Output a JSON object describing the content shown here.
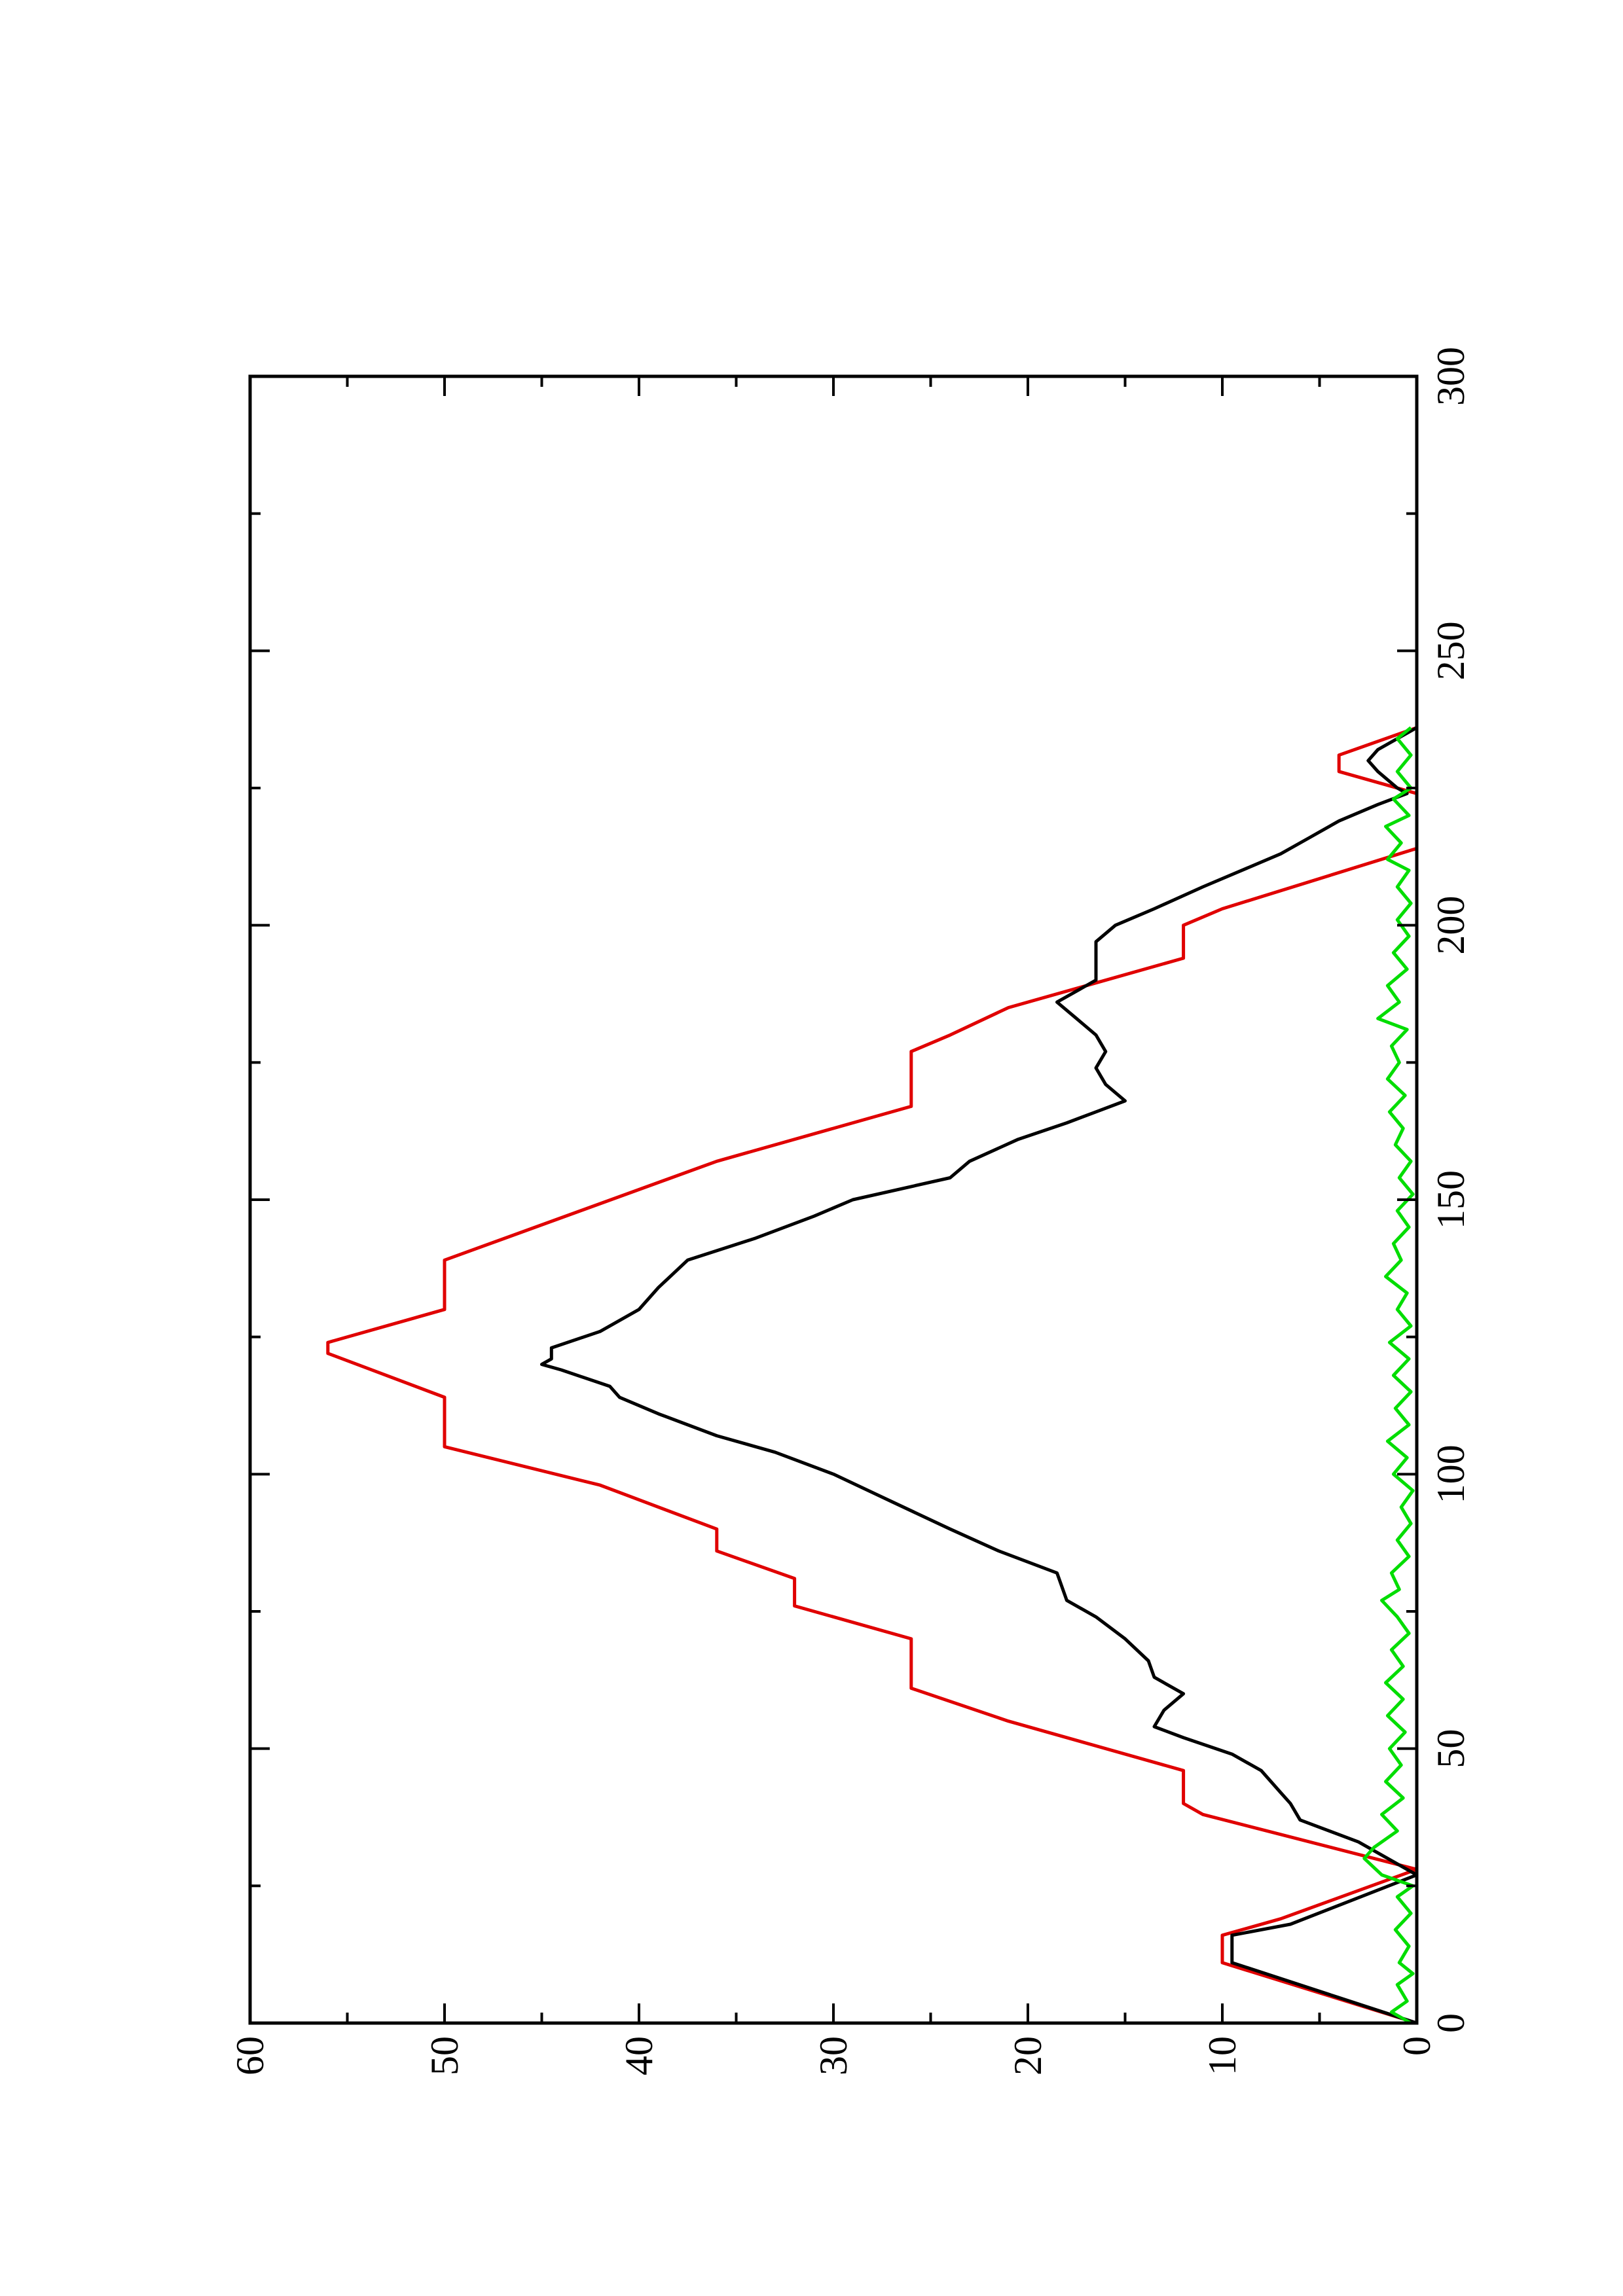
{
  "chart_data": {
    "type": "line",
    "title": "",
    "xlabel": "",
    "ylabel": "",
    "orientation": "rotated 90 degrees counter-clockwise",
    "xlim": [
      0,
      300
    ],
    "ylim": [
      0,
      60
    ],
    "x_ticks": [
      "0",
      "50",
      "100",
      "150",
      "200",
      "250",
      "300"
    ],
    "y_ticks": [
      "0",
      "10",
      "20",
      "30",
      "40",
      "50",
      "60"
    ],
    "grid": false,
    "legend": "none",
    "colors": {
      "red": "#e00000",
      "black": "#000000",
      "green": "#00dd00"
    },
    "series": [
      {
        "color": "#e00000",
        "points": [
          [
            0,
            0
          ],
          [
            11,
            10
          ],
          [
            16,
            10
          ],
          [
            19,
            7
          ],
          [
            28,
            0
          ],
          [
            38,
            11
          ],
          [
            40,
            12
          ],
          [
            46,
            12
          ],
          [
            55,
            21
          ],
          [
            61,
            26
          ],
          [
            70,
            26
          ],
          [
            76,
            32
          ],
          [
            81,
            32
          ],
          [
            86,
            36
          ],
          [
            90,
            36
          ],
          [
            98,
            42
          ],
          [
            105,
            50
          ],
          [
            114,
            50
          ],
          [
            122,
            56
          ],
          [
            124,
            56
          ],
          [
            130,
            50
          ],
          [
            139,
            50
          ],
          [
            157,
            36
          ],
          [
            167,
            26
          ],
          [
            177,
            26
          ],
          [
            180,
            24
          ],
          [
            185,
            21
          ],
          [
            194,
            12
          ],
          [
            200,
            12
          ],
          [
            203,
            10
          ],
          [
            214,
            0
          ],
          [
            224,
            0
          ],
          [
            228,
            4
          ],
          [
            231,
            4
          ],
          [
            236,
            0
          ]
        ]
      },
      {
        "color": "#000000",
        "points": [
          [
            0,
            0
          ],
          [
            11,
            9.5
          ],
          [
            16,
            9.5
          ],
          [
            18,
            6.5
          ],
          [
            27,
            0
          ],
          [
            29,
            1
          ],
          [
            33,
            3
          ],
          [
            37,
            6
          ],
          [
            40,
            6.5
          ],
          [
            42,
            7
          ],
          [
            46,
            8
          ],
          [
            49,
            9.5
          ],
          [
            52,
            12
          ],
          [
            54,
            13.5
          ],
          [
            57,
            13
          ],
          [
            60,
            12
          ],
          [
            63,
            13.5
          ],
          [
            66,
            13.8
          ],
          [
            70,
            15
          ],
          [
            74,
            16.5
          ],
          [
            77,
            18
          ],
          [
            82,
            18.5
          ],
          [
            86,
            21.5
          ],
          [
            90,
            24
          ],
          [
            95,
            27
          ],
          [
            100,
            30
          ],
          [
            104,
            33
          ],
          [
            107,
            36
          ],
          [
            111,
            39
          ],
          [
            114,
            41
          ],
          [
            116,
            41.5
          ],
          [
            119,
            44
          ],
          [
            120,
            45
          ],
          [
            121,
            44.5
          ],
          [
            123,
            44.5
          ],
          [
            126,
            42
          ],
          [
            130,
            40
          ],
          [
            134,
            39
          ],
          [
            139,
            37.5
          ],
          [
            143,
            34
          ],
          [
            147,
            31
          ],
          [
            150,
            29
          ],
          [
            154,
            24
          ],
          [
            157,
            23
          ],
          [
            161,
            20.5
          ],
          [
            164,
            18
          ],
          [
            166,
            16.5
          ],
          [
            168,
            15
          ],
          [
            171,
            16
          ],
          [
            174,
            16.5
          ],
          [
            177,
            16
          ],
          [
            180,
            16.5
          ],
          [
            183,
            17.5
          ],
          [
            186,
            18.5
          ],
          [
            188,
            17.5
          ],
          [
            190,
            16.5
          ],
          [
            193,
            16.5
          ],
          [
            197,
            16.5
          ],
          [
            200,
            15.5
          ],
          [
            203,
            13.5
          ],
          [
            207,
            11
          ],
          [
            210,
            9
          ],
          [
            213,
            7
          ],
          [
            216,
            5.5
          ],
          [
            219,
            4
          ],
          [
            222,
            2
          ],
          [
            224,
            0.5
          ],
          [
            225,
            1
          ],
          [
            228,
            2
          ],
          [
            230,
            2.5
          ],
          [
            232,
            2
          ],
          [
            236,
            0
          ]
        ]
      },
      {
        "color": "#00dd00",
        "points": [
          [
            0,
            0.3
          ],
          [
            2,
            1.3
          ],
          [
            4,
            0.5
          ],
          [
            7,
            1.0
          ],
          [
            9,
            0.2
          ],
          [
            11,
            0.9
          ],
          [
            14,
            0.4
          ],
          [
            17,
            1.1
          ],
          [
            20,
            0.3
          ],
          [
            23,
            1.0
          ],
          [
            25,
            0.2
          ],
          [
            27,
            1.8
          ],
          [
            30,
            2.7
          ],
          [
            32,
            2.2
          ],
          [
            35,
            1.0
          ],
          [
            38,
            1.8
          ],
          [
            41,
            0.7
          ],
          [
            44,
            1.6
          ],
          [
            47,
            0.8
          ],
          [
            50,
            1.4
          ],
          [
            53,
            0.6
          ],
          [
            56,
            1.5
          ],
          [
            59,
            0.7
          ],
          [
            62,
            1.6
          ],
          [
            65,
            0.7
          ],
          [
            68,
            1.3
          ],
          [
            71,
            0.4
          ],
          [
            74,
            1.0
          ],
          [
            77,
            1.8
          ],
          [
            79,
            0.9
          ],
          [
            82,
            1.3
          ],
          [
            85,
            0.4
          ],
          [
            88,
            1.0
          ],
          [
            91,
            0.3
          ],
          [
            94,
            0.8
          ],
          [
            97,
            0.2
          ],
          [
            100,
            1.2
          ],
          [
            103,
            0.5
          ],
          [
            106,
            1.5
          ],
          [
            109,
            0.4
          ],
          [
            112,
            1.1
          ],
          [
            115,
            0.3
          ],
          [
            118,
            1.2
          ],
          [
            121,
            0.4
          ],
          [
            124,
            1.4
          ],
          [
            127,
            0.3
          ],
          [
            130,
            1.0
          ],
          [
            133,
            0.5
          ],
          [
            136,
            1.6
          ],
          [
            139,
            0.8
          ],
          [
            142,
            1.2
          ],
          [
            145,
            0.4
          ],
          [
            148,
            1.0
          ],
          [
            151,
            0.2
          ],
          [
            154,
            0.9
          ],
          [
            157,
            0.3
          ],
          [
            160,
            1.1
          ],
          [
            163,
            0.7
          ],
          [
            166,
            1.4
          ],
          [
            169,
            0.6
          ],
          [
            172,
            1.5
          ],
          [
            175,
            0.9
          ],
          [
            178,
            1.3
          ],
          [
            181,
            0.5
          ],
          [
            183,
            2.0
          ],
          [
            186,
            0.9
          ],
          [
            189,
            1.5
          ],
          [
            192,
            0.5
          ],
          [
            195,
            1.2
          ],
          [
            198,
            0.4
          ],
          [
            201,
            1.0
          ],
          [
            204,
            0.3
          ],
          [
            207,
            1.0
          ],
          [
            210,
            0.4
          ],
          [
            212,
            1.5
          ],
          [
            215,
            0.8
          ],
          [
            218,
            1.6
          ],
          [
            220,
            0.4
          ],
          [
            223,
            1.2
          ],
          [
            225,
            0.3
          ],
          [
            228,
            1.0
          ],
          [
            231,
            0.3
          ],
          [
            234,
            1.0
          ],
          [
            236,
            0.3
          ]
        ]
      }
    ]
  }
}
